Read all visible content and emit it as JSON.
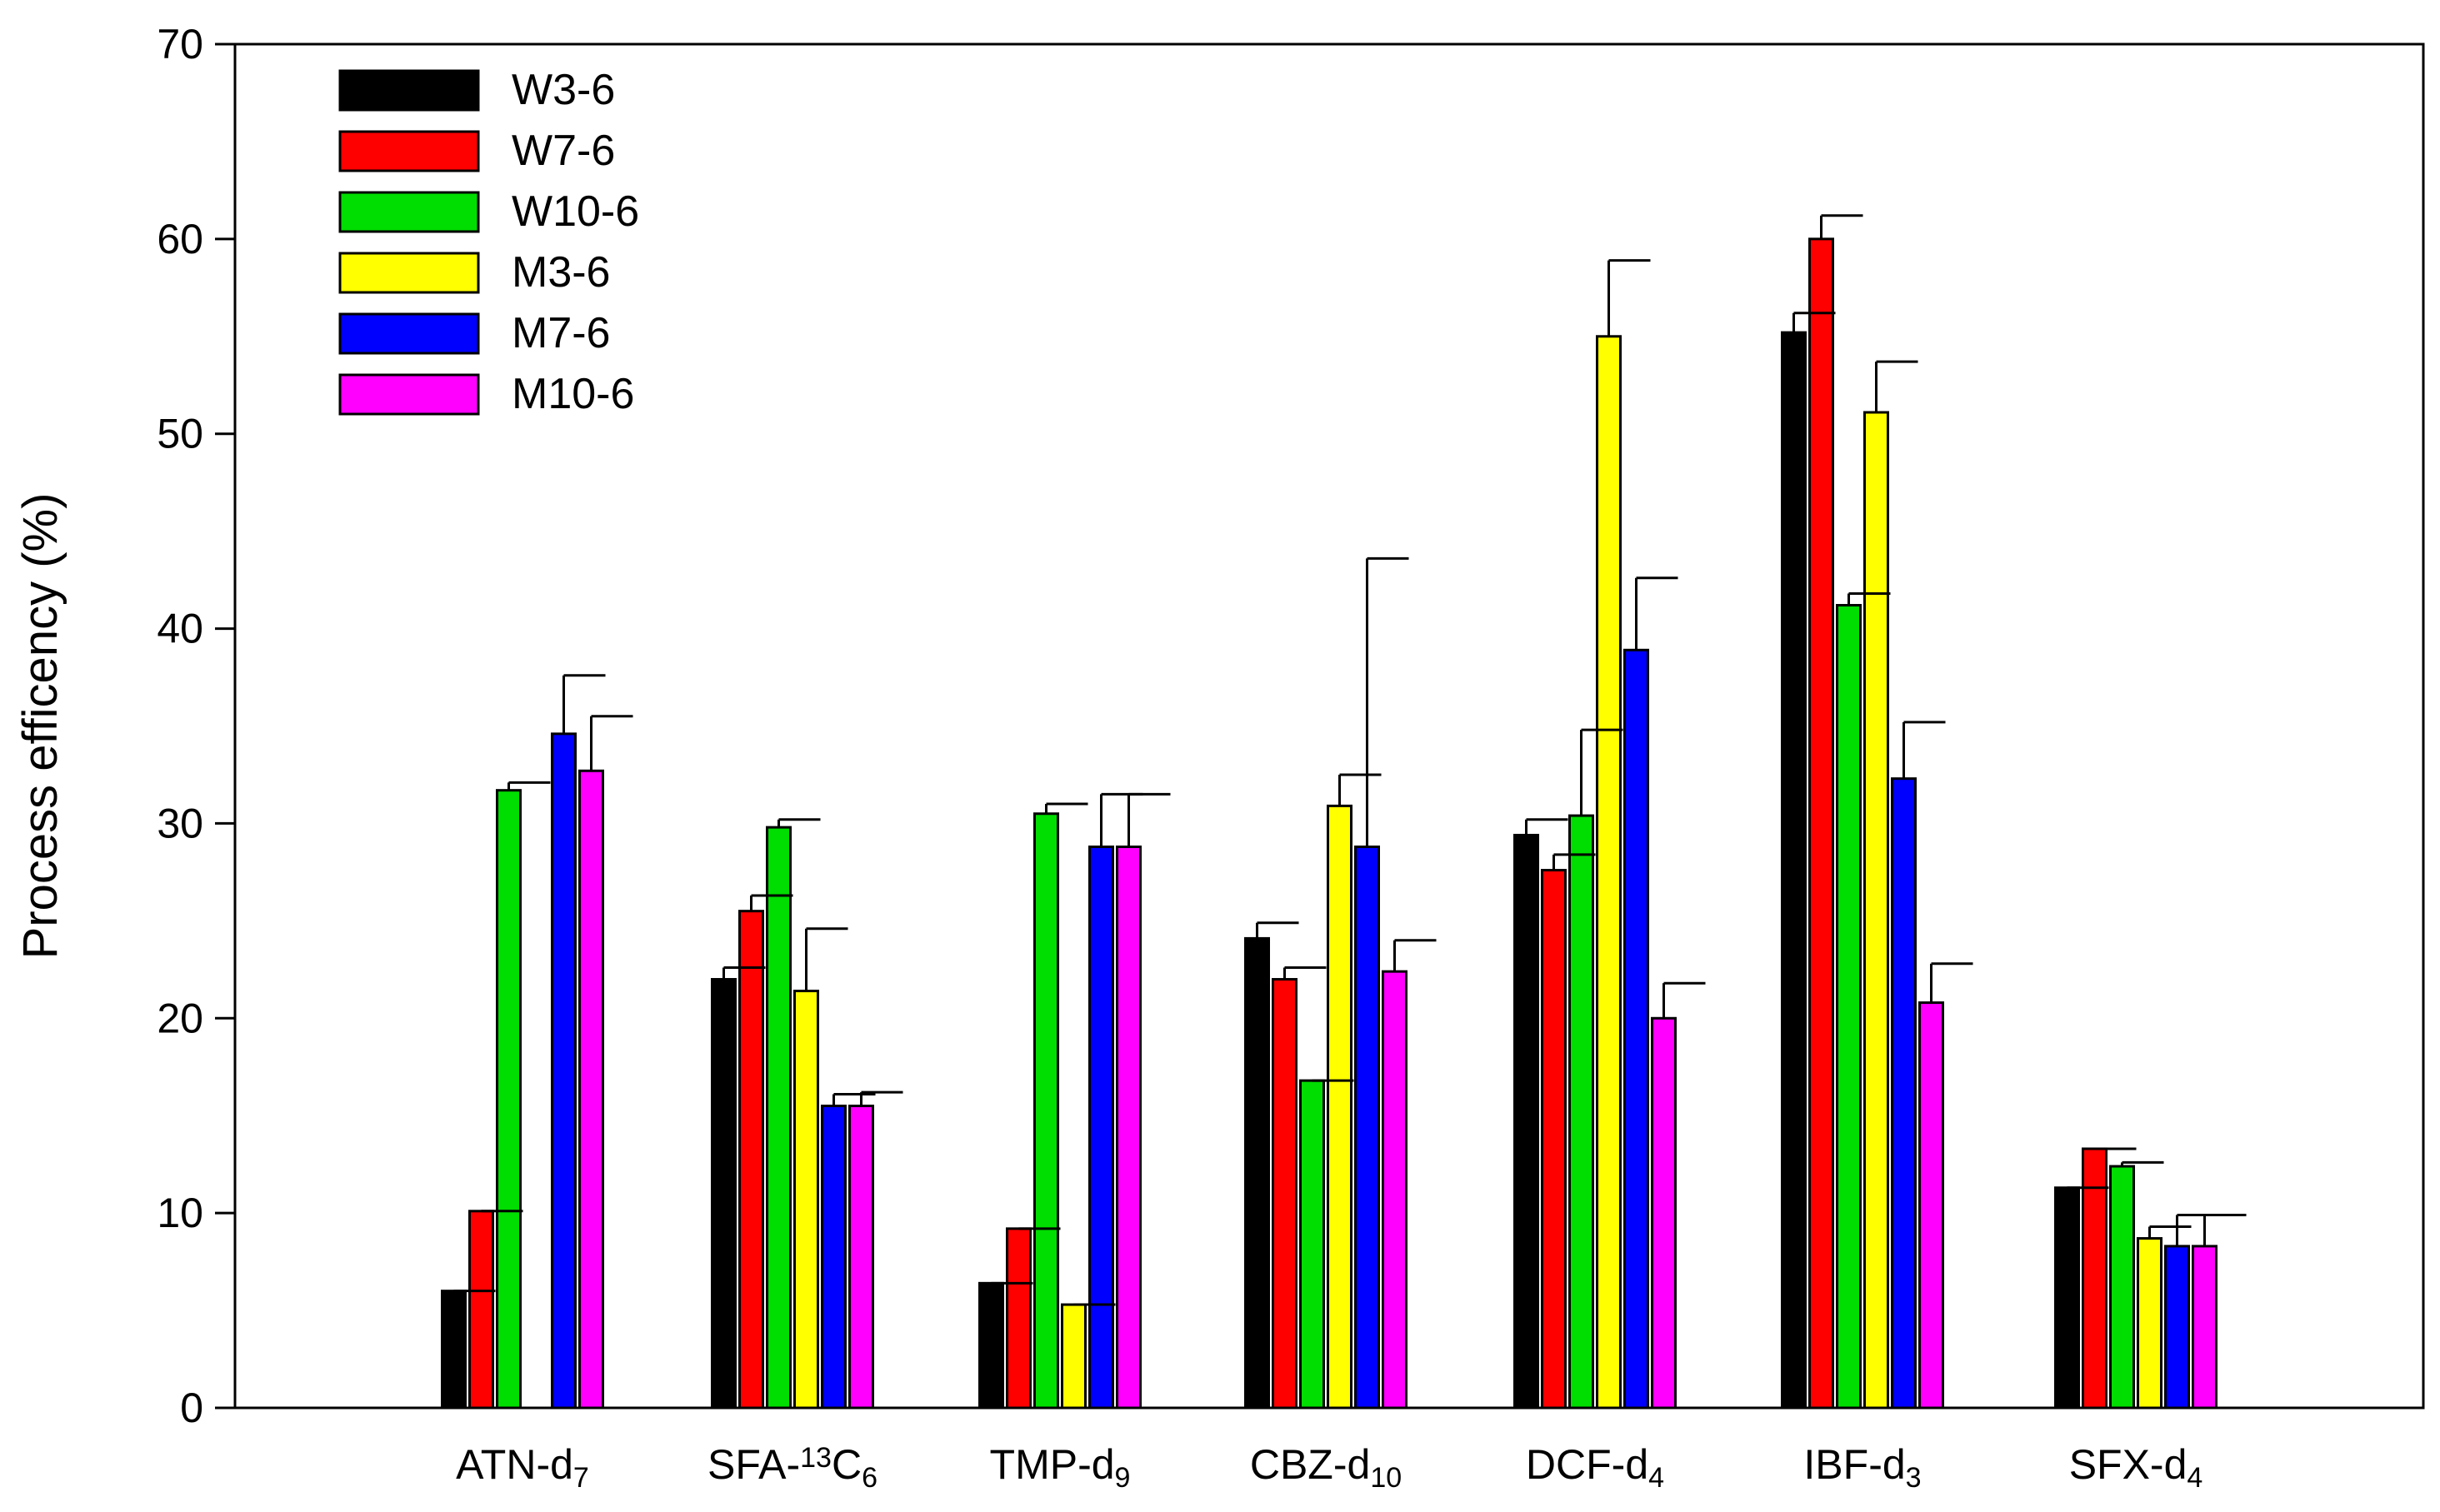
{
  "chart_data": {
    "type": "bar",
    "title": "",
    "xlabel": "",
    "ylabel": "Process efficency (%)",
    "ylim": [
      0,
      70
    ],
    "yticks": [
      0,
      10,
      20,
      30,
      40,
      50,
      60,
      70
    ],
    "grid": false,
    "legend_position": "top-left",
    "categories": [
      {
        "base": "ATN-d",
        "sub": "7"
      },
      {
        "pre": "SFA-",
        "sup": "13",
        "base": "C",
        "sub": "6"
      },
      {
        "base": "TMP-d",
        "sub": "9"
      },
      {
        "base": "CBZ-d",
        "sub": "10"
      },
      {
        "base": "DCF-d",
        "sub": "4"
      },
      {
        "base": "IBF-d",
        "sub": "3"
      },
      {
        "base": "SFX-d",
        "sub": "4"
      }
    ],
    "series": [
      {
        "name": "W3-6",
        "color": "#000000",
        "values": [
          6.0,
          22.0,
          6.4,
          24.1,
          29.4,
          55.2,
          11.3
        ],
        "errors": [
          0.0,
          0.6,
          0.0,
          0.8,
          0.8,
          1.0,
          0.0
        ]
      },
      {
        "name": "W7-6",
        "color": "#ff0000",
        "values": [
          10.1,
          25.5,
          9.2,
          22.0,
          27.6,
          60.0,
          13.3
        ],
        "errors": [
          0.0,
          0.8,
          0.0,
          0.6,
          0.8,
          1.2,
          0.0
        ]
      },
      {
        "name": "W10-6",
        "color": "#00dd00",
        "values": [
          31.7,
          29.8,
          30.5,
          16.8,
          30.4,
          41.2,
          12.4
        ],
        "errors": [
          0.4,
          0.4,
          0.5,
          0.0,
          4.4,
          0.6,
          0.2
        ]
      },
      {
        "name": "M3-6",
        "color": "#ffff00",
        "values": [
          0.0,
          21.4,
          5.3,
          30.9,
          55.0,
          51.1,
          8.7
        ],
        "errors": [
          0.0,
          3.2,
          0.0,
          1.6,
          3.9,
          2.6,
          0.6
        ]
      },
      {
        "name": "M7-6",
        "color": "#0000ff",
        "values": [
          34.6,
          15.5,
          28.8,
          28.8,
          38.9,
          32.3,
          8.3
        ],
        "errors": [
          3.0,
          0.6,
          2.7,
          14.8,
          3.7,
          2.9,
          1.6
        ]
      },
      {
        "name": "M10-6",
        "color": "#ff00ff",
        "values": [
          32.7,
          15.5,
          28.8,
          22.4,
          20.0,
          20.8,
          8.3
        ],
        "errors": [
          2.8,
          0.7,
          2.7,
          1.6,
          1.8,
          2.0,
          1.6
        ]
      }
    ]
  }
}
